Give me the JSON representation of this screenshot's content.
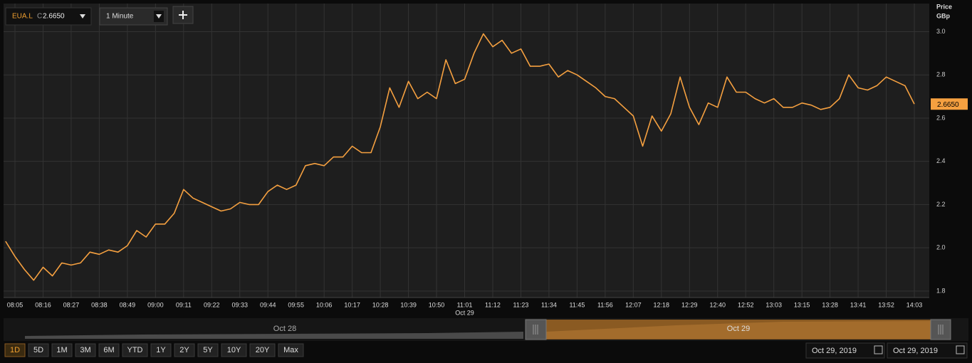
{
  "toolbar": {
    "symbol": "EUA.L",
    "close_prefix": "C",
    "interval": "1 Minute"
  },
  "chart_data": {
    "type": "line",
    "y_axis_title": "Price",
    "y_axis_unit": "GBp",
    "categories": [
      null,
      "08:05",
      null,
      null,
      "08:16",
      null,
      null,
      "08:27",
      null,
      null,
      "08:38",
      null,
      null,
      "08:49",
      null,
      null,
      "09:00",
      null,
      null,
      "09:11",
      null,
      null,
      "09:22",
      null,
      null,
      "09:33",
      null,
      null,
      "09:44",
      null,
      null,
      "09:55",
      null,
      null,
      "10:06",
      null,
      null,
      "10:17",
      null,
      null,
      "10:28",
      null,
      null,
      "10:39",
      null,
      null,
      "10:50",
      null,
      null,
      "11:01",
      null,
      null,
      "11:12",
      null,
      null,
      "11:23",
      null,
      null,
      "11:34",
      null,
      null,
      "11:45",
      null,
      null,
      "11:56",
      null,
      null,
      "12:07",
      null,
      null,
      "12:18",
      null,
      null,
      "12:29",
      null,
      null,
      "12:40",
      null,
      null,
      "12:52",
      null,
      null,
      "13:03",
      null,
      null,
      "13:15",
      null,
      null,
      "13:28",
      null,
      null,
      "13:41",
      null,
      null,
      "13:52",
      null,
      null,
      "14:03"
    ],
    "x_sublabel": "Oct 29",
    "series": [
      {
        "name": "EUA.L",
        "color": "#f5a040",
        "values": [
          2.03,
          1.96,
          1.9,
          1.85,
          1.91,
          1.87,
          1.93,
          1.92,
          1.93,
          1.98,
          1.97,
          1.99,
          1.98,
          2.01,
          2.08,
          2.05,
          2.11,
          2.11,
          2.16,
          2.27,
          2.23,
          2.21,
          2.19,
          2.17,
          2.18,
          2.21,
          2.2,
          2.2,
          2.26,
          2.29,
          2.27,
          2.29,
          2.38,
          2.39,
          2.38,
          2.42,
          2.42,
          2.47,
          2.44,
          2.44,
          2.56,
          2.74,
          2.65,
          2.77,
          2.69,
          2.72,
          2.69,
          2.87,
          2.76,
          2.78,
          2.9,
          2.99,
          2.93,
          2.96,
          2.9,
          2.92,
          2.84,
          2.84,
          2.85,
          2.79,
          2.82,
          2.8,
          2.77,
          2.74,
          2.7,
          2.69,
          2.65,
          2.61,
          2.47,
          2.61,
          2.54,
          2.62,
          2.79,
          2.65,
          2.57,
          2.67,
          2.65,
          2.79,
          2.72,
          2.72,
          2.69,
          2.67,
          2.69,
          2.65,
          2.65,
          2.67,
          2.66,
          2.64,
          2.65,
          2.69,
          2.8,
          2.74,
          2.73,
          2.75,
          2.79,
          2.77,
          2.75,
          2.665
        ]
      }
    ],
    "last_value": {
      "value": 2.665,
      "label": "2.6650"
    },
    "ylim": [
      1.77,
      3.13
    ],
    "yticks": [
      1.8,
      {
        "value": 2,
        "label": "2.0"
      },
      2.2,
      2.4,
      2.6,
      2.8,
      {
        "value": 3,
        "label": "3.0"
      }
    ],
    "grid": true
  },
  "navigator": {
    "labels": [
      "Oct 28",
      "Oct 29"
    ]
  },
  "ranges": [
    "1D",
    "5D",
    "1M",
    "3M",
    "6M",
    "YTD",
    "1Y",
    "2Y",
    "5Y",
    "10Y",
    "20Y",
    "Max"
  ],
  "selected_range": "1D",
  "date_from": "Oct 29, 2019",
  "date_to": "Oct 29, 2019"
}
